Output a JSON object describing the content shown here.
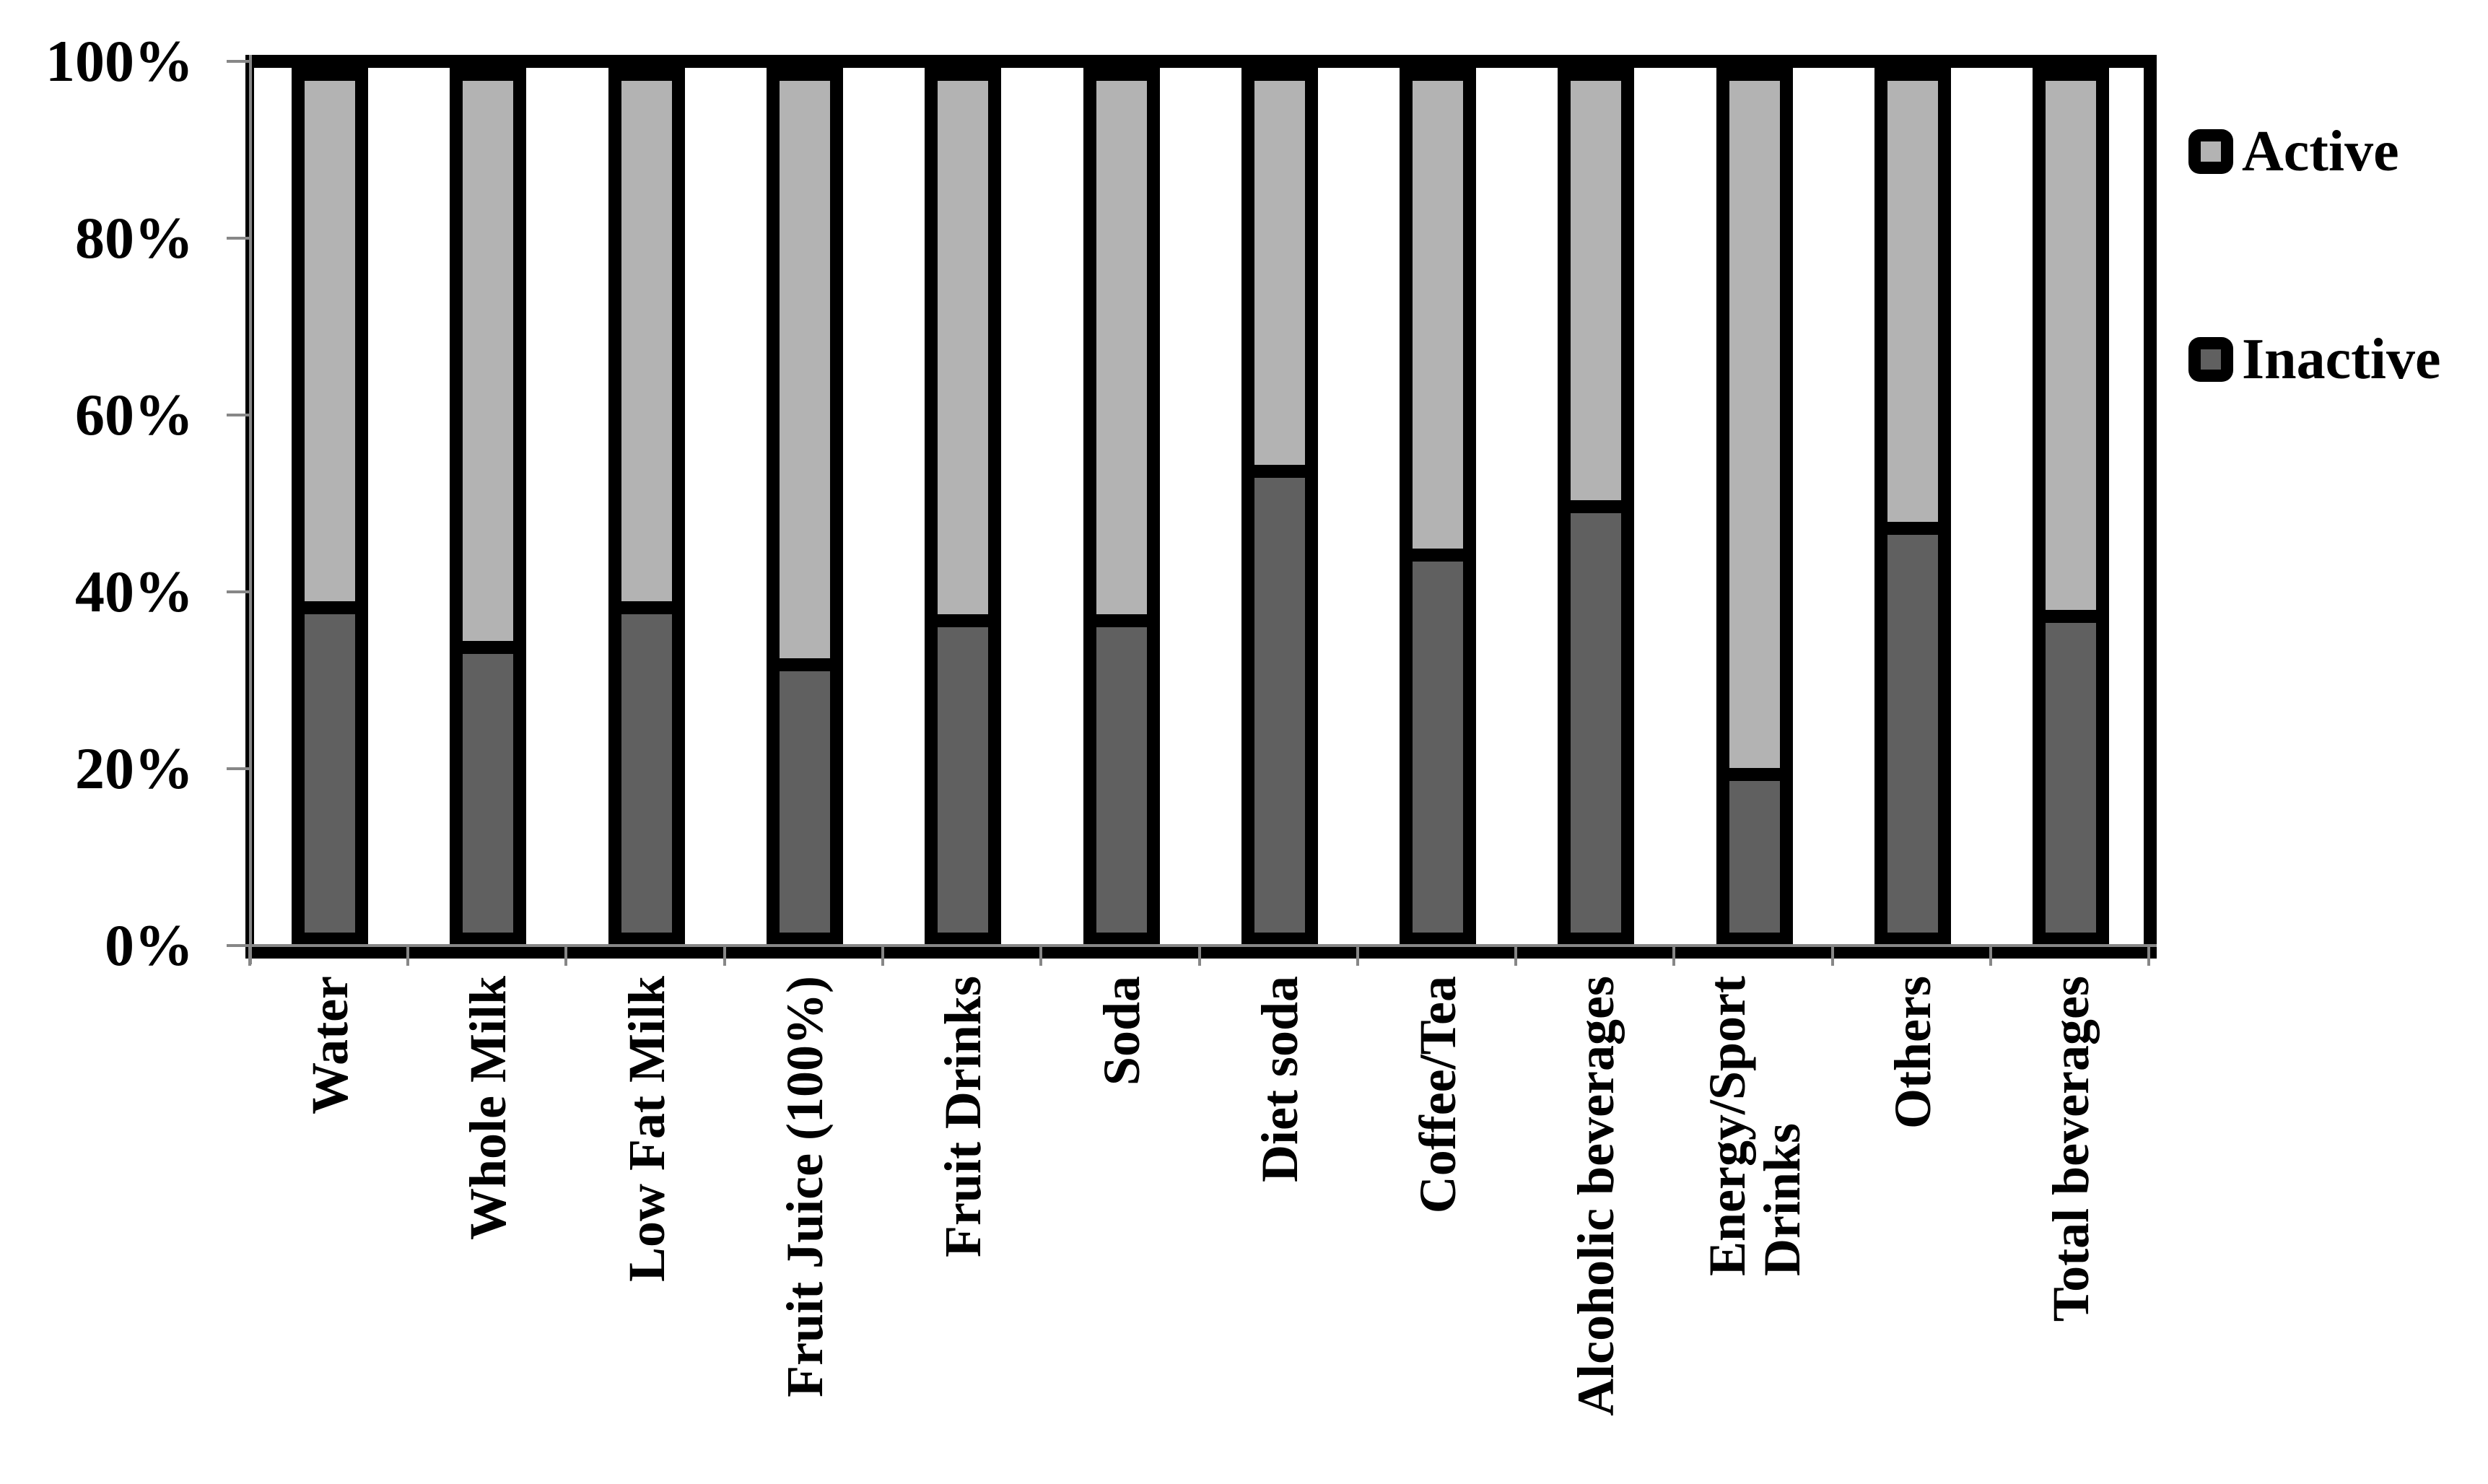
{
  "chart_data": {
    "type": "bar",
    "stacked": true,
    "percent_stacked": true,
    "title": "",
    "xlabel": "",
    "ylabel": "",
    "categories": [
      "Water",
      "Whole Milk",
      "Low Fat Milk",
      "Fruit Juice (100%)",
      "Fruit Drinks",
      "Soda",
      "Diet soda",
      "Coffee/Tea",
      "Alcoholic beverages",
      "Energy/Sport\nDrinks",
      "Others",
      "Total beverages"
    ],
    "series": [
      {
        "name": "Inactive",
        "color": "#606060",
        "values": [
          38.5,
          34,
          38.5,
          32,
          37,
          37,
          54,
          44.5,
          50,
          19.5,
          47.5,
          37.5
        ]
      },
      {
        "name": "Active",
        "color": "#b3b3b3",
        "values": [
          61.5,
          66,
          61.5,
          68,
          63,
          63,
          46,
          55.5,
          50,
          80.5,
          52.5,
          62.5
        ]
      }
    ],
    "y_axis": {
      "min": 0,
      "max": 100,
      "tick_step": 20,
      "ticks": [
        "100%",
        "80%",
        "60%",
        "40%",
        "20%",
        "0%"
      ]
    },
    "legend": [
      {
        "label": "Active",
        "color": "#b3b3b3"
      },
      {
        "label": "Inactive",
        "color": "#606060"
      }
    ],
    "legend_position": "right",
    "grid": false,
    "bar_border_color": "#000000",
    "axis_line_color": "#878787"
  }
}
